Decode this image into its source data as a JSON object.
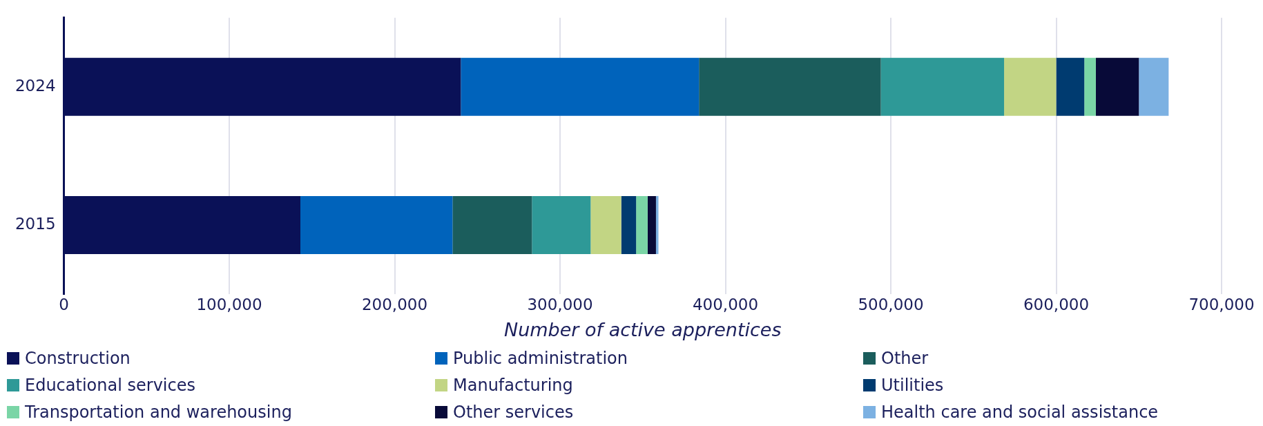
{
  "chart_data": {
    "type": "bar",
    "orientation": "horizontal",
    "stacked": true,
    "categories": [
      "2024",
      "2015"
    ],
    "xlabel": "Number of active apprentices",
    "xlim": [
      0,
      700000
    ],
    "xticks": [
      0,
      {
        "value": 100000,
        "label": "100,000"
      },
      {
        "value": 200000,
        "label": "200,000"
      },
      {
        "value": 300000,
        "label": "300,000"
      },
      {
        "value": 400000,
        "label": "400,000"
      },
      {
        "value": 500000,
        "label": "500,000"
      },
      {
        "value": 600000,
        "label": "600,000"
      },
      {
        "value": 700000,
        "label": "700,000"
      }
    ],
    "grid": "x",
    "legend": "bottom",
    "series": [
      {
        "name": "Construction",
        "color": "#0a1157",
        "values": [
          240000,
          143000
        ]
      },
      {
        "name": "Public administration",
        "color": "#0063bb",
        "values": [
          144000,
          92000
        ]
      },
      {
        "name": "Other",
        "color": "#1b5d5c",
        "values": [
          110000,
          48000
        ]
      },
      {
        "name": "Educational services",
        "color": "#2e9997",
        "values": [
          74500,
          35500
        ]
      },
      {
        "name": "Manufacturing",
        "color": "#c2d584",
        "values": [
          31500,
          18500
        ]
      },
      {
        "name": "Utilities",
        "color": "#003b70",
        "values": [
          17000,
          9000
        ]
      },
      {
        "name": "Transportation and warehousing",
        "color": "#7ad5a6",
        "values": [
          7000,
          7000
        ]
      },
      {
        "name": "Other services",
        "color": "#080a38",
        "values": [
          26000,
          5000
        ]
      },
      {
        "name": "Health care and social assistance",
        "color": "#7cb1e2",
        "values": [
          18000,
          1500
        ]
      }
    ]
  }
}
